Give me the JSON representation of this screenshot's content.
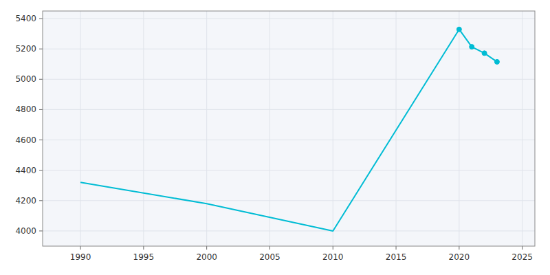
{
  "chart_data": {
    "type": "line",
    "x": [
      1990,
      2000,
      2010,
      2020,
      2021,
      2022,
      2023
    ],
    "series": [
      {
        "type": "line",
        "color": "#00bcd4",
        "values": [
          4320,
          4180,
          4000,
          5329,
          5214,
          5172,
          5115
        ]
      },
      {
        "type": "scatter",
        "color": "#00bcd4",
        "marker": "circle",
        "values": [
          null,
          null,
          null,
          5329,
          5214,
          5172,
          5115
        ]
      }
    ],
    "xlim": [
      1987,
      2026
    ],
    "xticks": [
      1990,
      1995,
      2000,
      2005,
      2010,
      2015,
      2020,
      2025
    ],
    "ylim": [
      3900,
      5450
    ],
    "yticks": [
      4000,
      4200,
      4400,
      4600,
      4800,
      5000,
      5200,
      5400
    ],
    "grid": true
  }
}
